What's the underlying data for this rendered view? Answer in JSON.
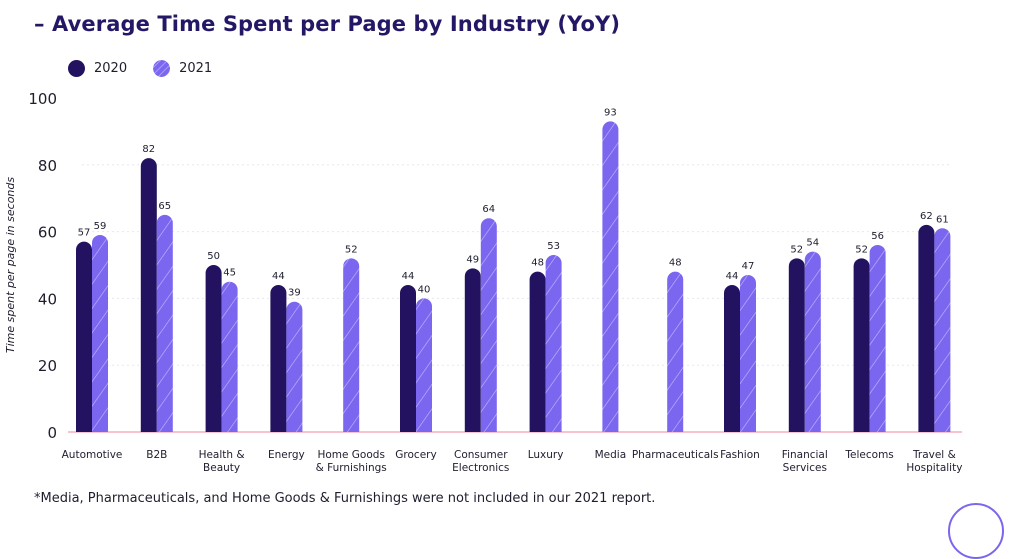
{
  "title": "– Average Time Spent per Page by Industry (YoY)",
  "footnote": "*Media, Pharmaceuticals, and Home Goods & Furnishings were not included in our 2021 report.",
  "colors": {
    "series_2020": "#23125f",
    "series_2021": "#7a66ef",
    "series_2021_stripe": "#d9d2ff",
    "title": "#241866",
    "axis_line": "#f2a0b0",
    "grid": "#e8e8ee"
  },
  "legend": [
    {
      "label": "2020",
      "color_key": "series_2020"
    },
    {
      "label": "2021",
      "color_key": "series_2021"
    }
  ],
  "chart_data": {
    "type": "bar",
    "title": "– Average Time Spent per Page by Industry (YoY)",
    "ylabel": "Time spent per page in seconds",
    "xlabel": "",
    "ylim": [
      0,
      100
    ],
    "yticks": [
      0,
      20,
      40,
      60,
      80,
      100
    ],
    "grid": true,
    "legend_position": "top-left",
    "categories": [
      [
        "Automotive"
      ],
      [
        "B2B"
      ],
      [
        "Health &",
        "Beauty"
      ],
      [
        "Energy"
      ],
      [
        "Home Goods",
        "& Furnishings"
      ],
      [
        "Grocery"
      ],
      [
        "Consumer",
        "Electronics"
      ],
      [
        "Luxury"
      ],
      [
        "Media"
      ],
      [
        "Pharmaceuticals"
      ],
      [
        "Fashion"
      ],
      [
        "Financial",
        "Services"
      ],
      [
        "Telecoms"
      ],
      [
        "Travel &",
        "Hospitality"
      ]
    ],
    "series": [
      {
        "name": "2020",
        "values": [
          57,
          82,
          50,
          44,
          null,
          44,
          49,
          48,
          null,
          null,
          44,
          52,
          52,
          62
        ]
      },
      {
        "name": "2021",
        "values": [
          59,
          65,
          45,
          39,
          52,
          40,
          64,
          53,
          93,
          48,
          47,
          54,
          56,
          61
        ]
      }
    ]
  }
}
